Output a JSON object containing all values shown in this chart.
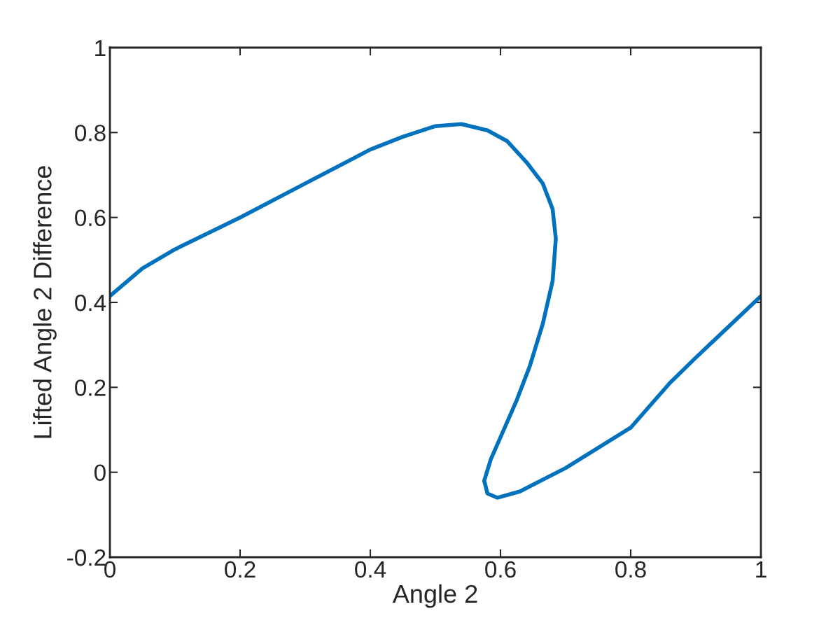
{
  "chart_data": {
    "type": "line",
    "xlabel": "Angle 2",
    "ylabel": "Lifted Angle 2 Difference",
    "xlim": [
      0,
      1
    ],
    "ylim": [
      -0.2,
      1
    ],
    "xticks": [
      0,
      0.2,
      0.4,
      0.6,
      0.8,
      1
    ],
    "yticks": [
      {
        "value": -0.2,
        "label": "-0.2"
      },
      0,
      0.2,
      0.4,
      0.6,
      0.8,
      1
    ],
    "grid": false,
    "marker": "none",
    "line_style": "solid",
    "series": [
      {
        "color": "#0072bd",
        "x": [
          0,
          0.05,
          0.1,
          0.2,
          0.3,
          0.4,
          0.45,
          0.5,
          0.54,
          0.58,
          0.61,
          0.64,
          0.665,
          0.68,
          0.685,
          0.68,
          0.665,
          0.645,
          0.625,
          0.605,
          0.585,
          0.575,
          0.58,
          0.595,
          0.63,
          0.7,
          0.8,
          0.86,
          0.9,
          1.0
        ],
        "values": [
          0.415,
          0.48,
          0.525,
          0.6,
          0.68,
          0.76,
          0.79,
          0.815,
          0.82,
          0.805,
          0.78,
          0.73,
          0.68,
          0.62,
          0.55,
          0.45,
          0.35,
          0.25,
          0.17,
          0.1,
          0.03,
          -0.02,
          -0.05,
          -0.06,
          -0.045,
          0.01,
          0.105,
          0.21,
          0.27,
          0.415
        ]
      }
    ]
  }
}
